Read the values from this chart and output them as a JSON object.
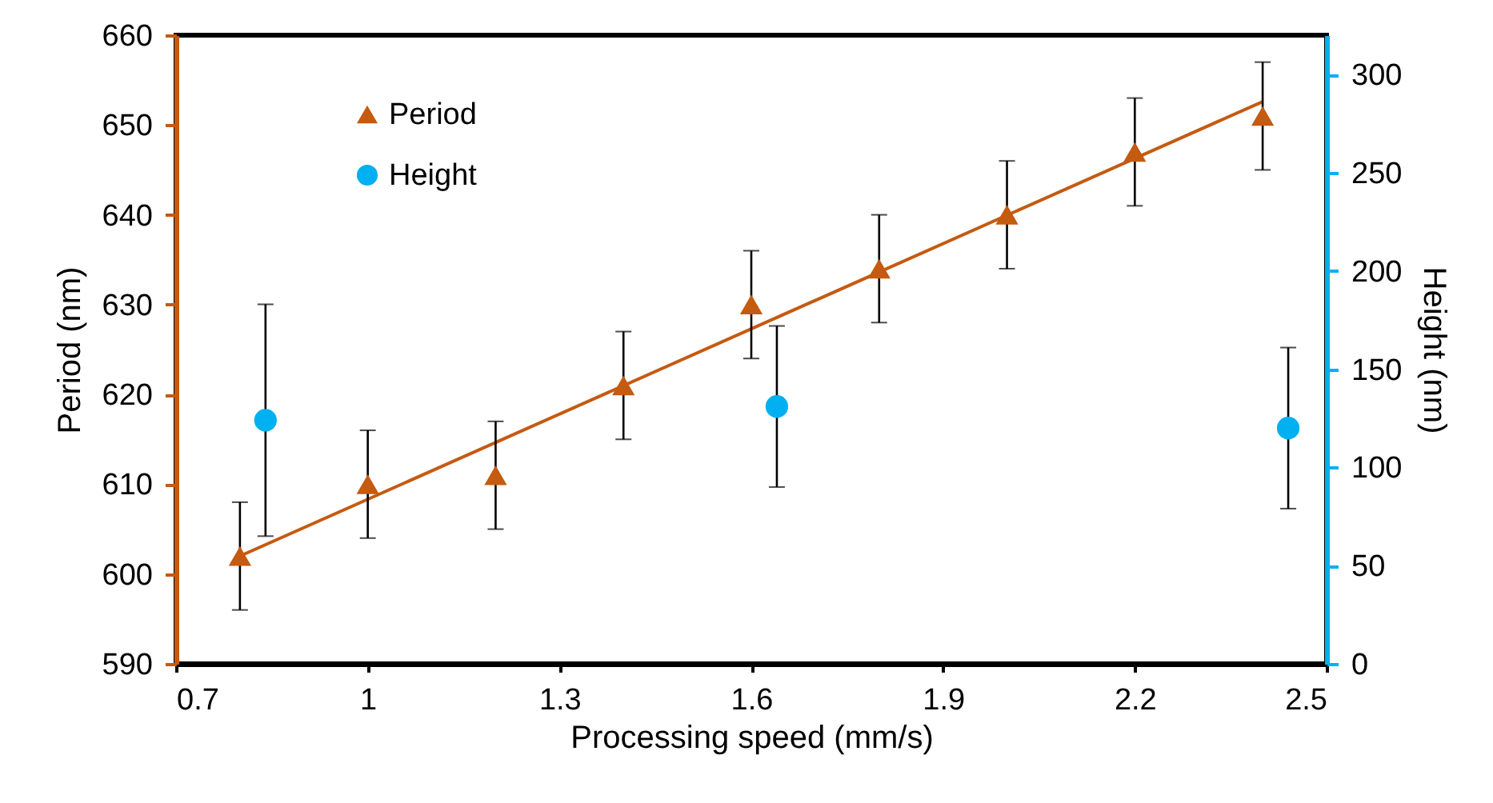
{
  "chart_data": {
    "type": "scatter",
    "xlabel": "Processing speed (mm/s)",
    "ylabel": "Period (nm)",
    "y2label": "Height (nm)",
    "xlim": [
      0.7,
      2.5
    ],
    "xticks": [
      0.7,
      1,
      1.3,
      1.6,
      1.9,
      2.2,
      2.5
    ],
    "ylim": [
      590,
      660
    ],
    "yticks": [
      590,
      600,
      610,
      620,
      630,
      640,
      650,
      660
    ],
    "y2lim": [
      0,
      320
    ],
    "y2ticks": [
      0,
      50,
      100,
      150,
      200,
      250,
      300
    ],
    "legend": "top left",
    "grid": false,
    "series": [
      {
        "name": "Period",
        "color": "#c55a11",
        "marker": "triangle",
        "x": [
          0.8,
          1.0,
          1.2,
          1.4,
          1.6,
          1.8,
          2.0,
          2.2,
          2.4
        ],
        "values": [
          602,
          610,
          611,
          621,
          630,
          634,
          640,
          647,
          651
        ],
        "errors": [
          6,
          6,
          6,
          6,
          6,
          6,
          6,
          6,
          6
        ]
      },
      {
        "type": "line",
        "color": "#c55a11",
        "x": [
          0.8,
          2.4
        ],
        "values": [
          602,
          652.6
        ]
      },
      {
        "name": "Height",
        "color": "#00b0f0",
        "marker": "circle",
        "axis": "y2",
        "x": [
          0.84,
          1.64,
          2.44
        ],
        "values": [
          124,
          131,
          120
        ],
        "errors": [
          59,
          41,
          41
        ]
      }
    ]
  }
}
